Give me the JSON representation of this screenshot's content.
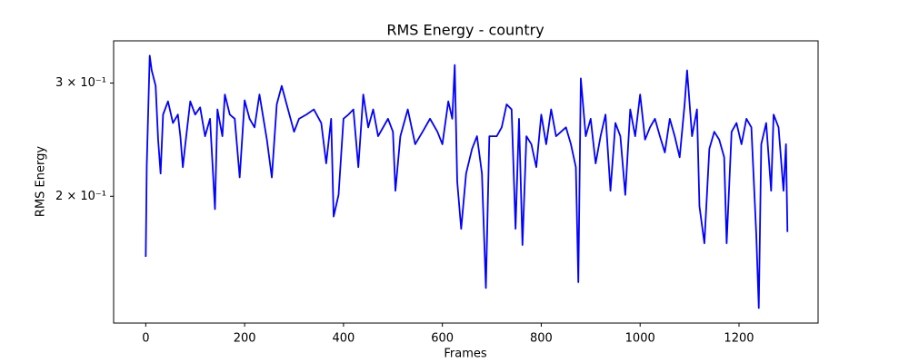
{
  "chart_data": {
    "type": "line",
    "title": "RMS Energy - country",
    "xlabel": "Frames",
    "ylabel": "RMS Energy",
    "yscale": "log",
    "grid": false,
    "xlim": [
      -65,
      1360
    ],
    "xticks": [
      0,
      200,
      400,
      600,
      800,
      1000,
      1200
    ],
    "ylim": [
      0.127,
      0.349
    ],
    "yticks": [
      {
        "value": 0.2,
        "label": "2 × 10⁻¹"
      },
      {
        "value": 0.3,
        "label": "3 × 10⁻¹"
      }
    ],
    "x": [
      0,
      2,
      8,
      12,
      20,
      25,
      30,
      35,
      45,
      55,
      65,
      70,
      75,
      80,
      90,
      100,
      110,
      120,
      130,
      140,
      145,
      155,
      160,
      170,
      180,
      190,
      200,
      210,
      220,
      230,
      245,
      255,
      265,
      275,
      285,
      300,
      310,
      325,
      340,
      355,
      365,
      375,
      380,
      390,
      400,
      410,
      420,
      430,
      440,
      450,
      460,
      470,
      490,
      500,
      505,
      515,
      530,
      545,
      560,
      575,
      590,
      600,
      612,
      620,
      625,
      630,
      638,
      648,
      660,
      670,
      680,
      688,
      695,
      710,
      720,
      730,
      740,
      748,
      755,
      762,
      770,
      780,
      790,
      800,
      810,
      820,
      830,
      840,
      850,
      860,
      870,
      875,
      880,
      890,
      900,
      910,
      920,
      930,
      940,
      950,
      960,
      970,
      980,
      990,
      1000,
      1010,
      1020,
      1030,
      1040,
      1050,
      1060,
      1070,
      1080,
      1090,
      1095,
      1105,
      1115,
      1120,
      1130,
      1140,
      1150,
      1160,
      1170,
      1175,
      1185,
      1195,
      1205,
      1215,
      1225,
      1235,
      1240,
      1245,
      1255,
      1265,
      1270,
      1280,
      1290,
      1295,
      1298
    ],
    "series": [
      {
        "name": "RMS Energy",
        "color": "#0000ff",
        "values": [
          0.161,
          0.223,
          0.331,
          0.314,
          0.297,
          0.245,
          0.217,
          0.268,
          0.281,
          0.26,
          0.268,
          0.248,
          0.222,
          0.241,
          0.281,
          0.268,
          0.275,
          0.248,
          0.264,
          0.191,
          0.273,
          0.248,
          0.288,
          0.268,
          0.264,
          0.214,
          0.282,
          0.264,
          0.256,
          0.288,
          0.245,
          0.214,
          0.278,
          0.297,
          0.278,
          0.252,
          0.264,
          0.268,
          0.273,
          0.26,
          0.225,
          0.264,
          0.186,
          0.201,
          0.264,
          0.268,
          0.273,
          0.222,
          0.288,
          0.256,
          0.273,
          0.248,
          0.264,
          0.252,
          0.204,
          0.248,
          0.273,
          0.241,
          0.252,
          0.264,
          0.252,
          0.241,
          0.281,
          0.264,
          0.32,
          0.211,
          0.178,
          0.217,
          0.237,
          0.248,
          0.217,
          0.144,
          0.248,
          0.248,
          0.256,
          0.278,
          0.273,
          0.178,
          0.264,
          0.168,
          0.248,
          0.241,
          0.222,
          0.268,
          0.241,
          0.273,
          0.248,
          0.252,
          0.256,
          0.241,
          0.222,
          0.147,
          0.305,
          0.248,
          0.264,
          0.225,
          0.248,
          0.268,
          0.204,
          0.26,
          0.248,
          0.201,
          0.273,
          0.248,
          0.288,
          0.245,
          0.256,
          0.264,
          0.248,
          0.234,
          0.264,
          0.248,
          0.23,
          0.278,
          0.314,
          0.248,
          0.273,
          0.193,
          0.169,
          0.237,
          0.252,
          0.245,
          0.23,
          0.169,
          0.252,
          0.26,
          0.241,
          0.264,
          0.256,
          0.174,
          0.134,
          0.241,
          0.26,
          0.204,
          0.268,
          0.256,
          0.204,
          0.241,
          0.176
        ]
      }
    ]
  }
}
